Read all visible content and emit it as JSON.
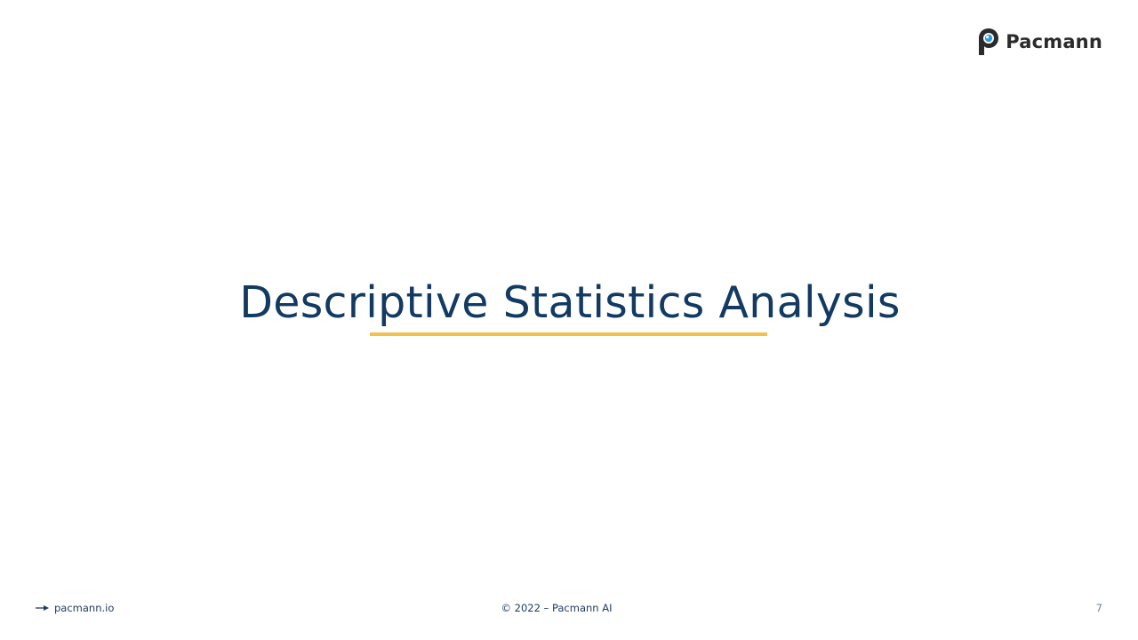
{
  "brand": {
    "name": "Pacmann",
    "logo_icon": "pacmann-logo-icon"
  },
  "slide": {
    "title": "Descriptive Statistics Analysis",
    "page_number": "7"
  },
  "footer": {
    "website": "pacmann.io",
    "copyright": "© 2022 – Pacmann AI",
    "arrow_icon": "arrow-right-icon"
  },
  "colors": {
    "title": "#123a63",
    "accent_underline": "#f2c14e",
    "footer_text": "#1e3a5f"
  }
}
